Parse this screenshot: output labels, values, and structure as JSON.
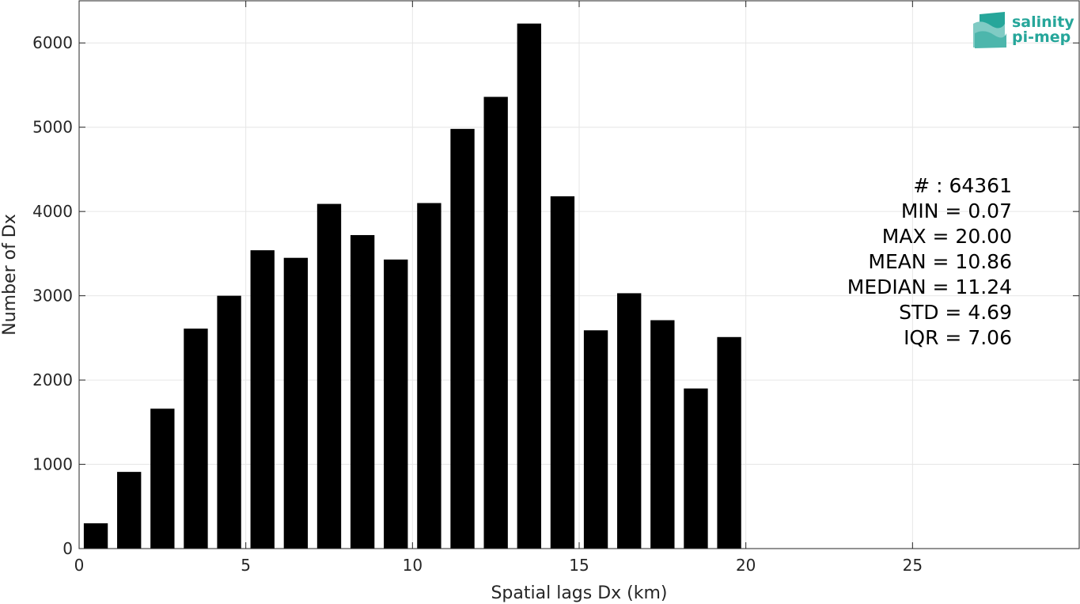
{
  "chart_data": {
    "type": "bar",
    "categories": [
      0.5,
      1.5,
      2.5,
      3.5,
      4.5,
      5.5,
      6.5,
      7.5,
      8.5,
      9.5,
      10.5,
      11.5,
      12.5,
      13.5,
      14.5,
      15.5,
      16.5,
      17.5,
      18.5,
      19.5
    ],
    "values": [
      300,
      910,
      1660,
      2610,
      3000,
      3540,
      3450,
      4090,
      3720,
      3430,
      4100,
      4980,
      5360,
      6230,
      4180,
      2590,
      3030,
      2710,
      1900,
      2510
    ],
    "bin_width": 1,
    "xlabel": "Spatial lags Dx (km)",
    "ylabel": "Number of Dx",
    "xlim": [
      0,
      30
    ],
    "ylim": [
      0,
      6500
    ],
    "xticks": [
      0,
      5,
      10,
      15,
      20,
      25
    ],
    "yticks": [
      0,
      1000,
      2000,
      3000,
      4000,
      5000,
      6000
    ],
    "grid": true,
    "bar_color": "#000000",
    "annotations": [
      "# : 64361",
      "MIN = 0.07",
      "MAX =  20.00",
      "MEAN = 10.86",
      "MEDIAN = 11.24",
      "STD = 4.69",
      "IQR = 7.06"
    ]
  },
  "logo": {
    "line1": "salinity",
    "line2": "pi-mep",
    "color": "#26a69a"
  }
}
